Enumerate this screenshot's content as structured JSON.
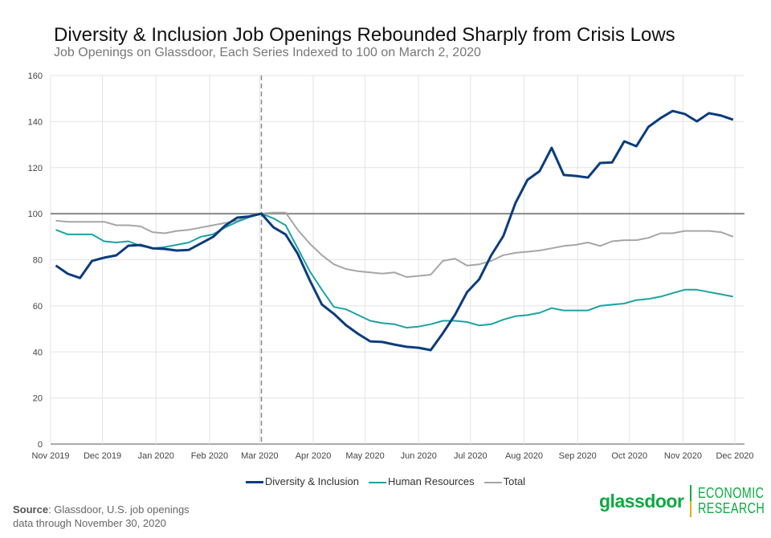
{
  "title": "Diversity & Inclusion Job Openings Rebounded Sharply from Crisis Lows",
  "subtitle": "Job Openings on Glassdoor, Each Series Indexed to 100 on March 2, 2020",
  "source_label": "Source",
  "source_text": ": Glassdoor, U.S. job openings",
  "source_text2": "data through November 30, 2020",
  "logo": {
    "brand": "glassdoor",
    "line1": "ECONOMIC",
    "line2": "RESEARCH"
  },
  "chart_data": {
    "type": "line",
    "title": "Diversity & Inclusion Job Openings Rebounded Sharply from Crisis Lows",
    "ylim": [
      0,
      160
    ],
    "yticks": [
      0,
      20,
      40,
      60,
      80,
      100,
      120,
      140,
      160
    ],
    "xlim": [
      "2019-11-01",
      "2020-12-01"
    ],
    "xticks": [
      {
        "date": "2019-11-01",
        "label": "Nov 2019"
      },
      {
        "date": "2019-12-01",
        "label": "Dec 2019"
      },
      {
        "date": "2020-01-01",
        "label": "Jan 2020"
      },
      {
        "date": "2020-02-01",
        "label": "Feb 2020"
      },
      {
        "date": "2020-03-01",
        "label": "Mar 2020"
      },
      {
        "date": "2020-04-01",
        "label": "Apr 2020"
      },
      {
        "date": "2020-05-01",
        "label": "May 2020"
      },
      {
        "date": "2020-06-01",
        "label": "Jun 2020"
      },
      {
        "date": "2020-07-01",
        "label": "Jul 2020"
      },
      {
        "date": "2020-08-01",
        "label": "Aug 2020"
      },
      {
        "date": "2020-09-01",
        "label": "Sep 2020"
      },
      {
        "date": "2020-10-01",
        "label": "Oct 2020"
      },
      {
        "date": "2020-11-01",
        "label": "Nov 2020"
      },
      {
        "date": "2020-12-01",
        "label": "Dec 2020"
      }
    ],
    "x_start": "2019-11-04",
    "x_step": "weekly",
    "reference_line": 100,
    "vertical_marker": "2020-03-02",
    "grid": true,
    "legend_placement": "bottom",
    "series": [
      {
        "name": "Diversity & Inclusion",
        "color": "#0b3c7d",
        "values": [
          77.5,
          73.9,
          72.1,
          79.5,
          80.9,
          81.9,
          86.1,
          86.4,
          85.0,
          84.7,
          84.0,
          84.3,
          87.1,
          89.9,
          94.8,
          98.3,
          98.8,
          100,
          94.1,
          91.0,
          82.6,
          71.1,
          60.6,
          56.5,
          51.6,
          47.8,
          44.6,
          44.3,
          43.2,
          42.2,
          41.8,
          40.8,
          48.1,
          56.1,
          65.9,
          71.5,
          81.9,
          90.3,
          104.6,
          114.7,
          118.5,
          128.6,
          116.8,
          116.4,
          115.7,
          122.0,
          122.3,
          131.4,
          129.3,
          137.7,
          141.5,
          144.6,
          143.3,
          140.1,
          143.6,
          142.6,
          140.8
        ]
      },
      {
        "name": "Human Resources",
        "color": "#1aa3a3",
        "values": [
          93,
          91,
          91,
          91,
          88,
          87.5,
          88,
          86,
          85,
          85.5,
          86.5,
          87.5,
          90,
          91,
          94,
          96.5,
          98.5,
          100,
          98,
          95,
          85,
          75,
          67,
          59.5,
          58.5,
          56,
          53.5,
          52.5,
          52,
          50.5,
          51,
          52,
          53.5,
          53.5,
          53,
          51.5,
          52,
          54,
          55.5,
          56,
          57,
          59,
          58,
          58,
          58,
          60,
          60.5,
          61,
          62.5,
          63,
          64,
          65.5,
          67,
          67,
          66,
          65,
          64
        ]
      },
      {
        "name": "Total",
        "color": "#a6a6a6",
        "values": [
          97,
          96.5,
          96.5,
          96.5,
          96.5,
          95,
          95,
          94.5,
          92,
          91.5,
          92.5,
          93,
          94,
          95,
          96,
          97,
          99,
          100,
          100.5,
          100.5,
          93,
          87,
          82,
          78,
          76,
          75,
          74.5,
          74,
          74.5,
          72.5,
          73,
          73.5,
          79.5,
          80.5,
          77.5,
          78,
          79.5,
          82,
          83,
          83.5,
          84,
          85,
          86,
          86.5,
          87.5,
          86,
          88,
          88.5,
          88.5,
          89.5,
          91.5,
          91.5,
          92.5,
          92.5,
          92.5,
          92,
          90
        ]
      }
    ]
  }
}
